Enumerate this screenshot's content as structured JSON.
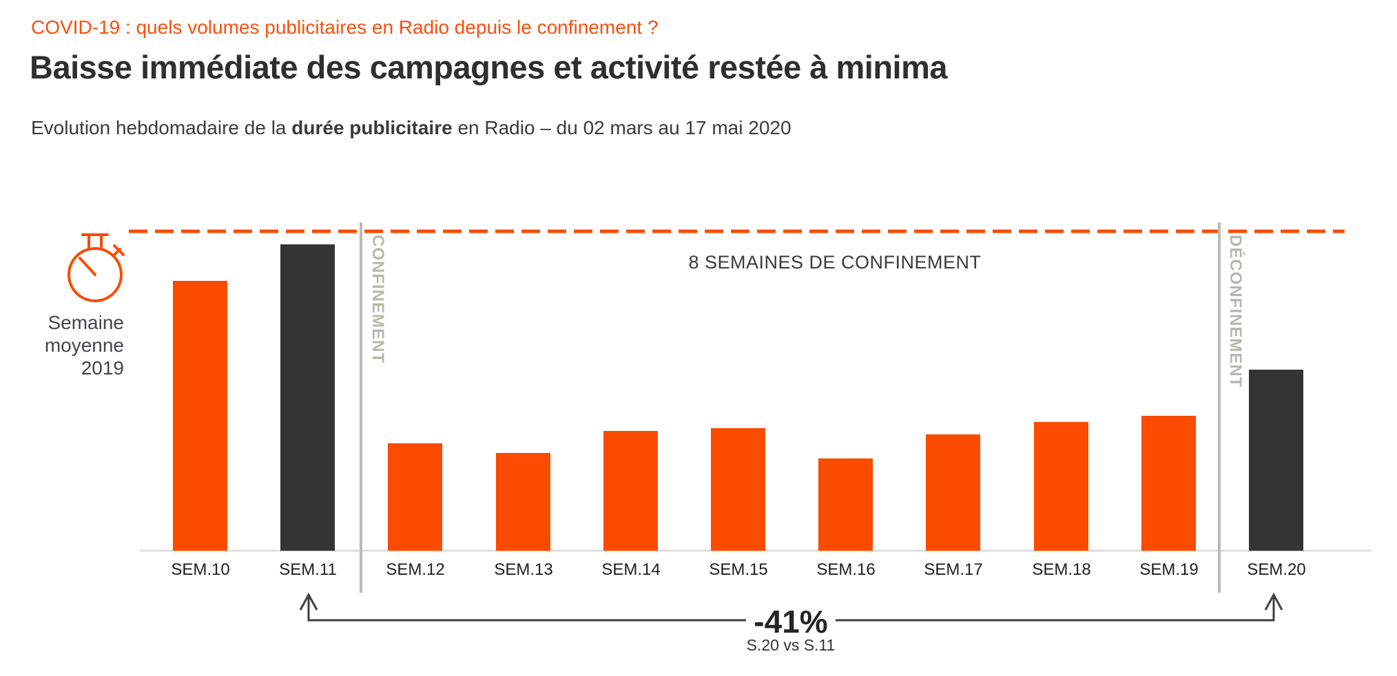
{
  "header": {
    "eyebrow": "COVID-19 : quels volumes publicitaires en Radio depuis le confinement ?",
    "title": "Baisse immédiate des campagnes et activité restée à minima",
    "subtitle_prefix": "Evolution hebdomadaire de la ",
    "subtitle_bold": "durée publicitaire",
    "subtitle_suffix": " en Radio – du 02 mars au 17 mai 2020"
  },
  "reference": {
    "icon": "stopwatch-icon",
    "label_line1": "Semaine",
    "label_line2": "moyenne",
    "label_line3": "2019"
  },
  "chart_data": {
    "type": "bar",
    "categories": [
      "SEM.10",
      "SEM.11",
      "SEM.12",
      "SEM.13",
      "SEM.14",
      "SEM.15",
      "SEM.16",
      "SEM.17",
      "SEM.18",
      "SEM.19",
      "SEM.20"
    ],
    "values": [
      88,
      100,
      35,
      32,
      39,
      40,
      30,
      38,
      42,
      44,
      59
    ],
    "value_unit": "index of weekly ad duration (SEM.11 = 100, read from bar heights)",
    "bar_colors": {
      "default": "#FA4B00",
      "highlight": "#343434"
    },
    "highlighted_categories": [
      "SEM.11",
      "SEM.20"
    ],
    "reference_line": {
      "label": "Semaine moyenne 2019",
      "value": 104,
      "style": "dashed",
      "color": "#FA4B00"
    },
    "period_markers": [
      {
        "label": "CONFINEMENT",
        "position": "between SEM.11 and SEM.12"
      },
      {
        "label": "DÉCONFINEMENT",
        "position": "between SEM.19 and SEM.20"
      }
    ],
    "annotations": [
      {
        "text": "8 SEMAINES DE CONFINEMENT"
      },
      {
        "text": "-41%",
        "subtext": "S.20 vs S.11",
        "from": "SEM.11",
        "to": "SEM.20"
      }
    ],
    "xlabel": "",
    "ylabel": "",
    "grid": false,
    "legend": false
  },
  "colors": {
    "accent_orange": "#FA4B00",
    "eyebrow_orange": "#FB4E0D",
    "dark_bar": "#343434",
    "divider_gray": "#BBBCB0",
    "axis_gray": "#DDDDDD",
    "annotation_dark": "#3F3F3F"
  }
}
